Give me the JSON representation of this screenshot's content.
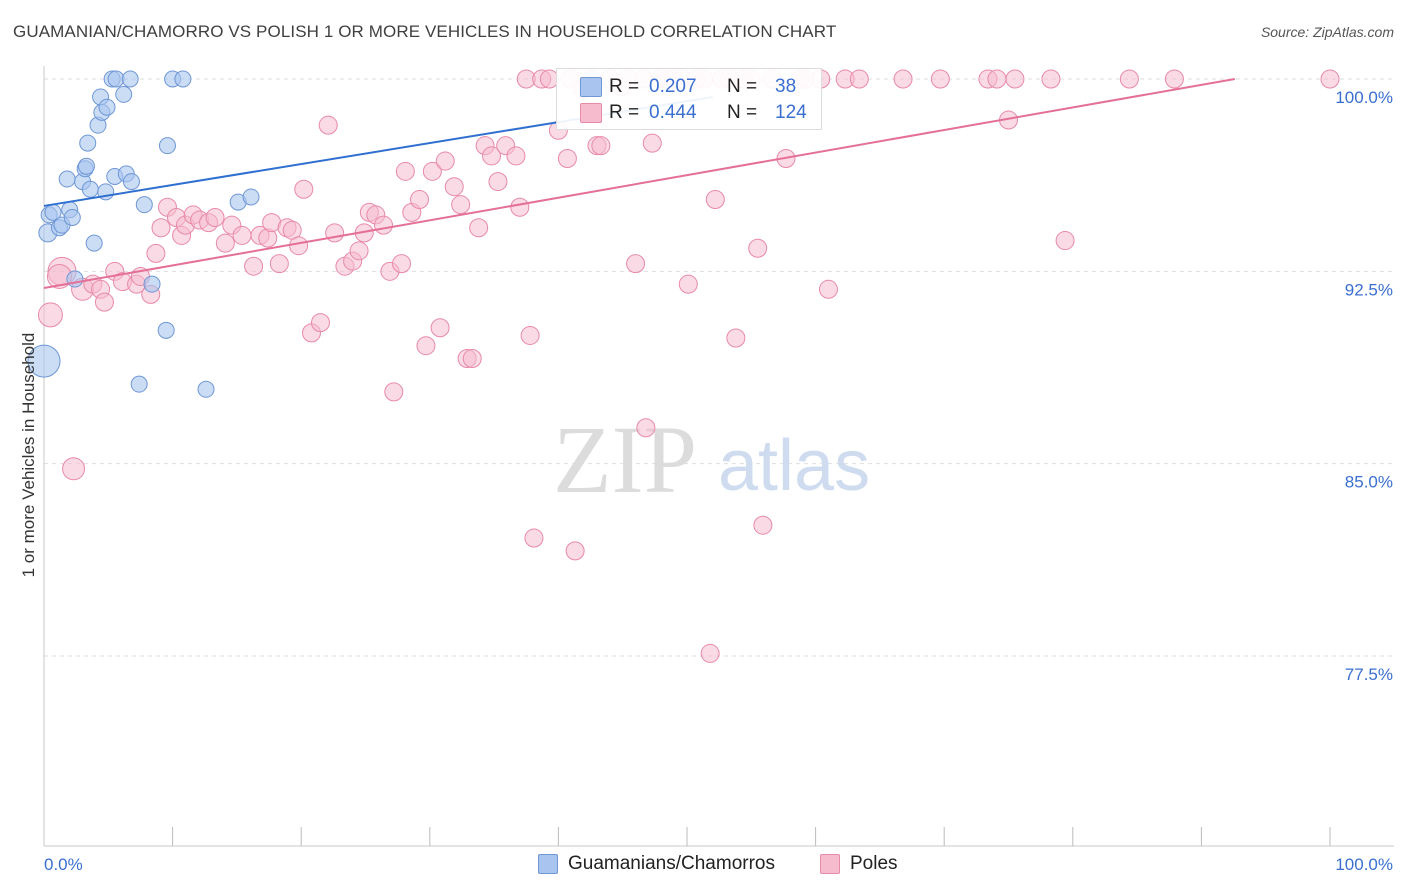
{
  "title": "GUAMANIAN/CHAMORRO VS POLISH 1 OR MORE VEHICLES IN HOUSEHOLD CORRELATION CHART",
  "source": "Source: ZipAtlas.com",
  "watermark": {
    "zip": "ZIP",
    "atlas": "atlas"
  },
  "colors": {
    "blue_fill": "#a9c4ee",
    "blue_stroke": "#6f97d6",
    "blue_line": "#2f6fd0",
    "pink_fill": "#f6bccd",
    "pink_stroke": "#e88aa8",
    "pink_line": "#e4709a",
    "tick_label": "#3a6fd0",
    "grid": "#dedede"
  },
  "legend": {
    "rows": [
      {
        "r_label": "R =",
        "r_value": "0.207",
        "n_label": "N =",
        "n_value": "38"
      },
      {
        "r_label": "R =",
        "r_value": "0.444",
        "n_label": "N =",
        "n_value": "124"
      }
    ]
  },
  "bottom_legend": {
    "series1": "Guamanians/Chamorros",
    "series2": "Poles"
  },
  "chart_data": {
    "type": "scatter",
    "xlabel": "",
    "ylabel": "1 or more Vehicles in Household",
    "xlim": [
      0,
      105
    ],
    "ylim": [
      71.0,
      101.3
    ],
    "x_tick_labels": [
      "0.0%",
      "100.0%"
    ],
    "y_ticks": [
      77.5,
      85.0,
      92.5,
      100.0
    ],
    "y_tick_labels": [
      "77.5%",
      "85.0%",
      "92.5%",
      "100.0%"
    ],
    "grid": true,
    "series": [
      {
        "name": "Guamanians/Chamorros",
        "r": 0.207,
        "n": 38,
        "trend": {
          "x": [
            0,
            52
          ],
          "y": [
            95.05,
            99.3
          ]
        },
        "points": [
          [
            0.0,
            89.0,
            16
          ],
          [
            0.3,
            94.0,
            9
          ],
          [
            0.4,
            94.7,
            8
          ],
          [
            0.7,
            94.8,
            8
          ],
          [
            1.2,
            94.2,
            8
          ],
          [
            1.4,
            94.3,
            8
          ],
          [
            1.8,
            96.1,
            8
          ],
          [
            2.0,
            94.9,
            8
          ],
          [
            2.2,
            94.6,
            8
          ],
          [
            2.4,
            92.2,
            8
          ],
          [
            3.0,
            96.0,
            8
          ],
          [
            3.2,
            96.5,
            8
          ],
          [
            3.3,
            96.6,
            8
          ],
          [
            3.4,
            97.5,
            8
          ],
          [
            3.6,
            95.7,
            8
          ],
          [
            3.9,
            93.6,
            8
          ],
          [
            4.2,
            98.2,
            8
          ],
          [
            4.4,
            99.3,
            8
          ],
          [
            4.5,
            98.7,
            8
          ],
          [
            4.8,
            95.6,
            8
          ],
          [
            4.9,
            98.9,
            8
          ],
          [
            5.3,
            100.0,
            8
          ],
          [
            5.5,
            96.2,
            8
          ],
          [
            5.6,
            100.0,
            8
          ],
          [
            6.2,
            99.4,
            8
          ],
          [
            6.4,
            96.3,
            8
          ],
          [
            6.7,
            100.0,
            8
          ],
          [
            6.8,
            96.0,
            8
          ],
          [
            7.4,
            88.1,
            8
          ],
          [
            7.8,
            95.1,
            8
          ],
          [
            8.4,
            92.0,
            8
          ],
          [
            9.5,
            90.2,
            8
          ],
          [
            9.6,
            97.4,
            8
          ],
          [
            10.0,
            100.0,
            8
          ],
          [
            10.8,
            100.0,
            8
          ],
          [
            12.6,
            87.9,
            8
          ],
          [
            15.1,
            95.2,
            8
          ],
          [
            16.1,
            95.4,
            8
          ]
        ]
      },
      {
        "name": "Poles",
        "r": 0.444,
        "n": 124,
        "trend": {
          "x": [
            0,
            92.6
          ],
          "y": [
            91.85,
            100.0
          ]
        },
        "points": [
          [
            0.5,
            90.8,
            12
          ],
          [
            1.4,
            92.5,
            14
          ],
          [
            2.3,
            84.8,
            11
          ],
          [
            3.0,
            91.8,
            11
          ],
          [
            1.2,
            92.3,
            12
          ],
          [
            3.8,
            92.0,
            9
          ],
          [
            4.4,
            91.8,
            9
          ],
          [
            4.7,
            91.3,
            9
          ],
          [
            5.5,
            92.5,
            9
          ],
          [
            6.1,
            92.1,
            9
          ],
          [
            7.2,
            92.0,
            9
          ],
          [
            7.5,
            92.3,
            9
          ],
          [
            8.3,
            91.6,
            9
          ],
          [
            8.7,
            93.2,
            9
          ],
          [
            9.1,
            94.2,
            9
          ],
          [
            9.6,
            95.0,
            9
          ],
          [
            10.3,
            94.6,
            9
          ],
          [
            10.7,
            93.9,
            9
          ],
          [
            11.0,
            94.3,
            9
          ],
          [
            11.6,
            94.7,
            9
          ],
          [
            12.1,
            94.5,
            9
          ],
          [
            12.8,
            94.4,
            9
          ],
          [
            13.3,
            94.6,
            9
          ],
          [
            14.1,
            93.6,
            9
          ],
          [
            14.6,
            94.3,
            9
          ],
          [
            15.4,
            93.9,
            9
          ],
          [
            16.3,
            92.7,
            9
          ],
          [
            16.8,
            93.9,
            9
          ],
          [
            17.4,
            93.8,
            9
          ],
          [
            17.7,
            94.4,
            9
          ],
          [
            18.3,
            92.8,
            9
          ],
          [
            18.9,
            94.2,
            9
          ],
          [
            19.3,
            94.1,
            9
          ],
          [
            19.8,
            93.5,
            9
          ],
          [
            20.2,
            95.7,
            9
          ],
          [
            20.8,
            90.1,
            9
          ],
          [
            21.5,
            90.5,
            9
          ],
          [
            22.1,
            98.2,
            9
          ],
          [
            22.6,
            94.0,
            9
          ],
          [
            23.4,
            92.7,
            9
          ],
          [
            24.0,
            92.9,
            9
          ],
          [
            24.5,
            93.3,
            9
          ],
          [
            24.9,
            94.0,
            9
          ],
          [
            25.3,
            94.8,
            9
          ],
          [
            25.8,
            94.7,
            9
          ],
          [
            26.4,
            94.3,
            9
          ],
          [
            26.9,
            92.5,
            9
          ],
          [
            27.2,
            87.8,
            9
          ],
          [
            27.8,
            92.8,
            9
          ],
          [
            28.1,
            96.4,
            9
          ],
          [
            28.6,
            94.8,
            9
          ],
          [
            29.2,
            95.3,
            9
          ],
          [
            29.7,
            89.6,
            9
          ],
          [
            30.2,
            96.4,
            9
          ],
          [
            30.8,
            90.3,
            9
          ],
          [
            31.2,
            96.8,
            9
          ],
          [
            31.9,
            95.8,
            9
          ],
          [
            32.4,
            95.1,
            9
          ],
          [
            32.9,
            89.1,
            9
          ],
          [
            33.3,
            89.1,
            9
          ],
          [
            33.8,
            94.2,
            9
          ],
          [
            34.3,
            97.4,
            9
          ],
          [
            34.8,
            97.0,
            9
          ],
          [
            35.3,
            96.0,
            9
          ],
          [
            35.9,
            97.4,
            9
          ],
          [
            36.7,
            97.0,
            9
          ],
          [
            37.0,
            95.0,
            9
          ],
          [
            37.5,
            100.0,
            9
          ],
          [
            37.8,
            90.0,
            9
          ],
          [
            38.1,
            82.1,
            9
          ],
          [
            38.7,
            100.0,
            9
          ],
          [
            39.3,
            100.0,
            9
          ],
          [
            40.0,
            98.0,
            9
          ],
          [
            40.7,
            96.9,
            9
          ],
          [
            40.9,
            100.0,
            9
          ],
          [
            41.3,
            81.6,
            9
          ],
          [
            41.9,
            99.6,
            9
          ],
          [
            42.6,
            100.0,
            9
          ],
          [
            43.0,
            97.4,
            9
          ],
          [
            43.3,
            97.4,
            9
          ],
          [
            44.0,
            100.0,
            9
          ],
          [
            44.9,
            99.7,
            9
          ],
          [
            45.4,
            100.0,
            9
          ],
          [
            46.0,
            92.8,
            9
          ],
          [
            46.6,
            100.0,
            9
          ],
          [
            46.8,
            86.4,
            9
          ],
          [
            47.3,
            97.5,
            9
          ],
          [
            47.9,
            100.0,
            9
          ],
          [
            48.4,
            100.0,
            9
          ],
          [
            49.0,
            100.0,
            9
          ],
          [
            49.6,
            100.0,
            9
          ],
          [
            50.1,
            92.0,
            9
          ],
          [
            50.7,
            100.0,
            9
          ],
          [
            51.3,
            100.0,
            9
          ],
          [
            51.8,
            77.6,
            9
          ],
          [
            52.2,
            95.3,
            9
          ],
          [
            52.7,
            100.0,
            9
          ],
          [
            53.3,
            100.0,
            9
          ],
          [
            53.8,
            89.9,
            9
          ],
          [
            54.4,
            100.0,
            9
          ],
          [
            55.0,
            100.0,
            9
          ],
          [
            55.5,
            93.4,
            9
          ],
          [
            55.9,
            82.6,
            9
          ],
          [
            56.6,
            100.0,
            9
          ],
          [
            57.7,
            96.9,
            9
          ],
          [
            59.2,
            100.0,
            9
          ],
          [
            60.4,
            100.0,
            9
          ],
          [
            61.0,
            91.8,
            9
          ],
          [
            62.3,
            100.0,
            9
          ],
          [
            63.4,
            100.0,
            9
          ],
          [
            66.8,
            100.0,
            9
          ],
          [
            69.7,
            100.0,
            9
          ],
          [
            73.4,
            100.0,
            9
          ],
          [
            74.1,
            100.0,
            9
          ],
          [
            75.0,
            98.4,
            9
          ],
          [
            75.5,
            100.0,
            9
          ],
          [
            78.3,
            100.0,
            9
          ],
          [
            79.4,
            93.7,
            9
          ],
          [
            84.4,
            100.0,
            9
          ],
          [
            87.9,
            100.0,
            9
          ],
          [
            100.0,
            100.0,
            9
          ],
          [
            58.8,
            100.0,
            9
          ]
        ]
      }
    ]
  }
}
